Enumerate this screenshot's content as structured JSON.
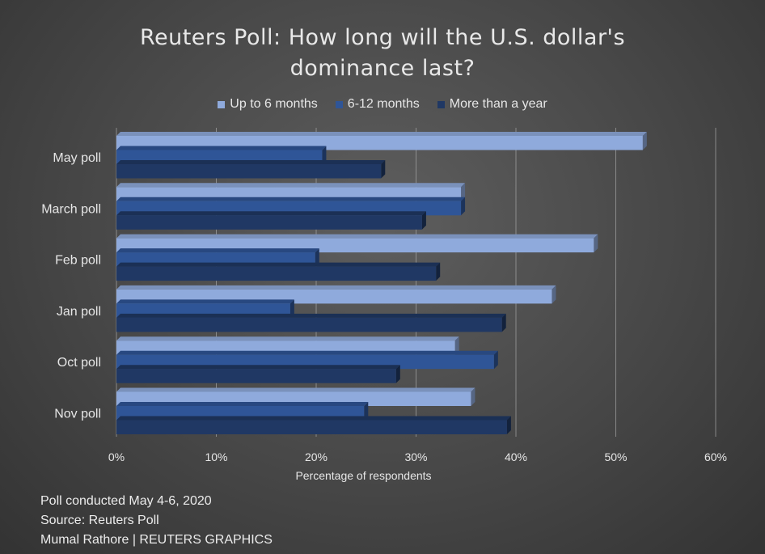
{
  "chart_data": {
    "type": "bar",
    "orientation": "horizontal",
    "title": "Reuters Poll: How long will the U.S. dollar's dominance last?",
    "title_lines": [
      "Reuters Poll: How long will the U.S. dollar's",
      "dominance last?"
    ],
    "xlabel": "Percentage of respondents",
    "ylabel": "",
    "xlim": [
      0,
      60
    ],
    "x_ticks": [
      "0%",
      "10%",
      "20%",
      "30%",
      "40%",
      "50%",
      "60%"
    ],
    "tick_values": [
      0,
      10,
      20,
      30,
      40,
      50,
      60
    ],
    "categories": [
      "May poll",
      "March poll",
      "Feb poll",
      "Jan poll",
      "Oct poll",
      "Nov poll"
    ],
    "series": [
      {
        "name": "Up to 6 months",
        "color": "#8faadc",
        "values": [
          52.7,
          34.5,
          47.8,
          43.6,
          33.9,
          35.5
        ]
      },
      {
        "name": "6-12 months",
        "color": "#2f5597",
        "values": [
          20.6,
          34.5,
          19.9,
          17.4,
          37.8,
          24.8
        ]
      },
      {
        "name": "More than a year",
        "color": "#203864",
        "values": [
          26.5,
          30.6,
          32.0,
          38.6,
          28.0,
          39.1
        ]
      }
    ],
    "grid": true,
    "legend_position": "top"
  },
  "footer": {
    "line1": "Poll conducted May 4-6, 2020",
    "line2": "Source: Reuters Poll",
    "line3": "Mumal Rathore | REUTERS GRAPHICS"
  }
}
